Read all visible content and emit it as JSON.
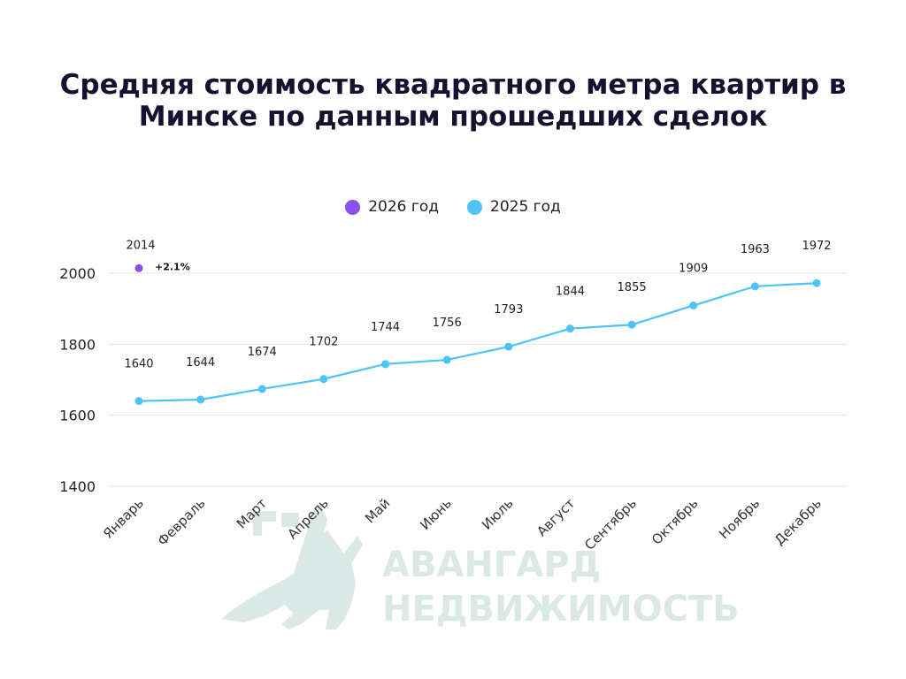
{
  "colors": {
    "series_2026": "#8b4ff0",
    "series_2025": "#4ec3f7",
    "grid": "#e6e6e6",
    "watermark": "#dbe9e6"
  },
  "watermark": {
    "line1": "АВАНГАРД",
    "line2": "НЕДВИЖИМОСТЬ"
  },
  "chart_data": {
    "type": "line",
    "title": "Средняя стоимость квадратного метра квартир в Минске по данным прошедших сделок",
    "xlabel": "",
    "ylabel": "",
    "categories": [
      "Январь",
      "Февраль",
      "Март",
      "Апрель",
      "Май",
      "Июнь",
      "Июль",
      "Август",
      "Сентябрь",
      "Октябрь",
      "Ноябрь",
      "Декабрь"
    ],
    "yticks": [
      "1400",
      "1600",
      "1800",
      "2000"
    ],
    "ylim": [
      1400,
      2000
    ],
    "grid": true,
    "legend_position": "top-center",
    "series": [
      {
        "name": "2026 год",
        "values": [
          2014,
          null,
          null,
          null,
          null,
          null,
          null,
          null,
          null,
          null,
          null,
          null
        ],
        "data_labels": [
          "2014",
          null,
          null,
          null,
          null,
          null,
          null,
          null,
          null,
          null,
          null,
          null
        ],
        "annotation": "+2.1%"
      },
      {
        "name": "2025 год",
        "values": [
          1640,
          1644,
          1674,
          1702,
          1744,
          1756,
          1793,
          1844,
          1855,
          1909,
          1963,
          1972
        ],
        "data_labels": [
          "1640",
          "1644",
          "1674",
          "1702",
          "1744",
          "1756",
          "1793",
          "1844",
          "1855",
          "1909",
          "1963",
          "1972"
        ]
      }
    ]
  }
}
